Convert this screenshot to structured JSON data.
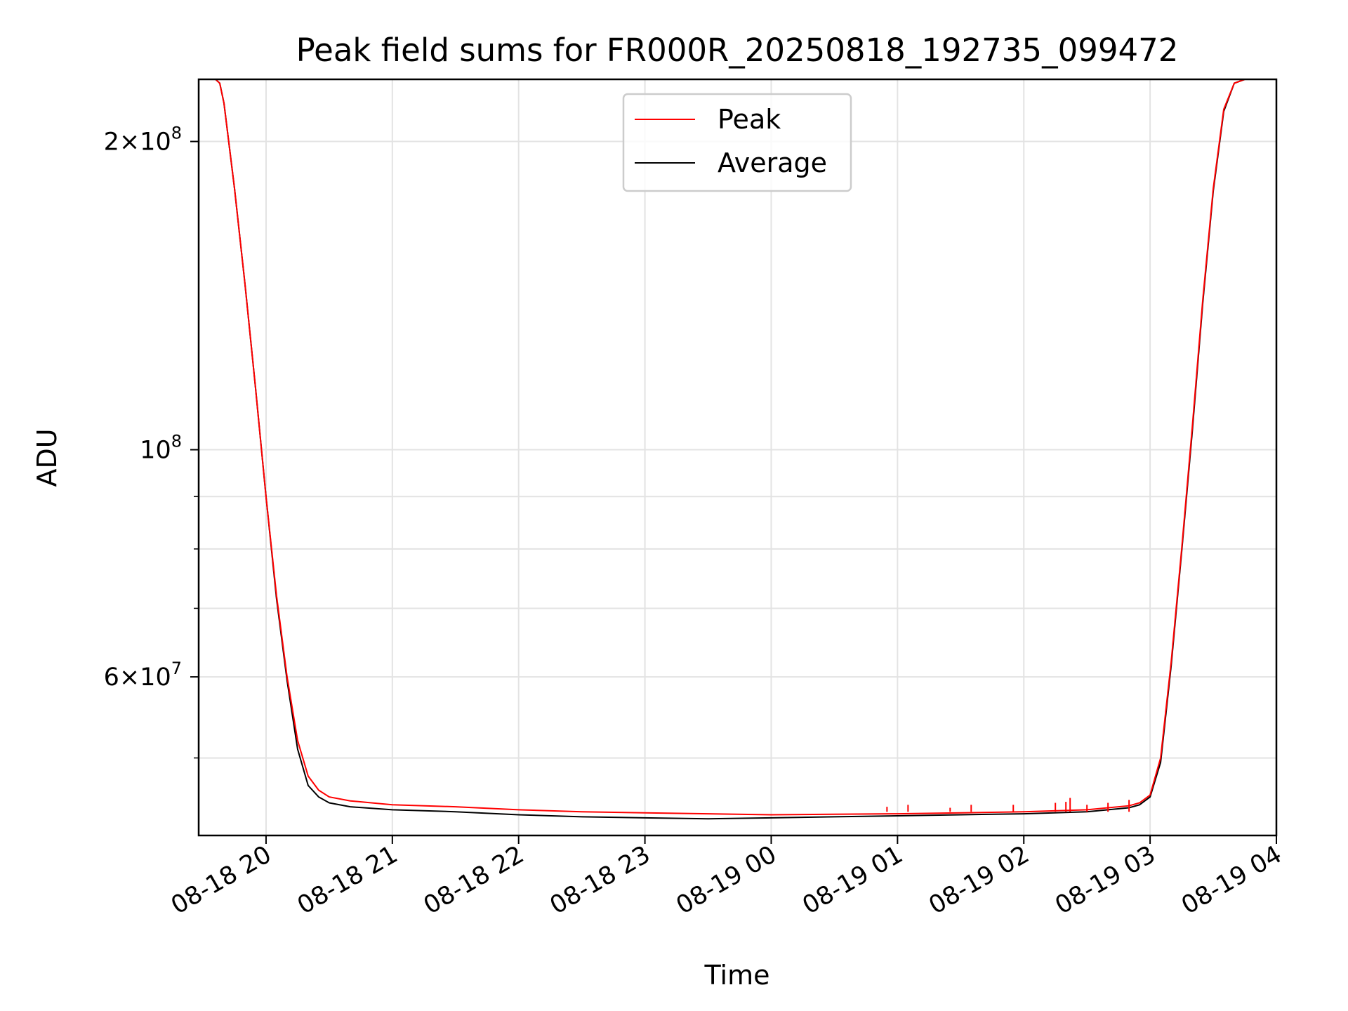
{
  "chart_data": {
    "type": "line",
    "title": "Peak field sums for FR000R_20250818_192735_099472",
    "xlabel": "Time",
    "ylabel": "ADU",
    "yscale": "log",
    "ylim": [
      42000000,
      230000000
    ],
    "xlim": [
      "2025-08-18 19:28",
      "2025-08-19 04:00"
    ],
    "grid": true,
    "legend_placement": "upper center",
    "x_ticks": [
      {
        "value": "2025-08-18 20:00",
        "label": "08-18 20"
      },
      {
        "value": "2025-08-18 21:00",
        "label": "08-18 21"
      },
      {
        "value": "2025-08-18 22:00",
        "label": "08-18 22"
      },
      {
        "value": "2025-08-18 23:00",
        "label": "08-18 23"
      },
      {
        "value": "2025-08-19 00:00",
        "label": "08-19 00"
      },
      {
        "value": "2025-08-19 01:00",
        "label": "08-19 01"
      },
      {
        "value": "2025-08-19 02:00",
        "label": "08-19 02"
      },
      {
        "value": "2025-08-19 03:00",
        "label": "08-19 03"
      },
      {
        "value": "2025-08-19 04:00",
        "label": "08-19 04"
      }
    ],
    "y_ticks": [
      {
        "value": 200000000,
        "mantissa": "2",
        "exponent": "8"
      },
      {
        "value": 100000000,
        "mantissa": "",
        "exponent": "8"
      },
      {
        "value": 60000000,
        "mantissa": "6",
        "exponent": "7"
      }
    ],
    "y_minor_ticks": [
      50000000,
      70000000,
      80000000,
      90000000
    ],
    "series": [
      {
        "name": "Peak",
        "color": "#ff0000",
        "x": [
          "2025-08-18 19:28",
          "2025-08-18 19:36",
          "2025-08-18 19:38",
          "2025-08-18 19:40",
          "2025-08-18 19:45",
          "2025-08-18 19:50",
          "2025-08-18 19:55",
          "2025-08-18 20:00",
          "2025-08-18 20:05",
          "2025-08-18 20:10",
          "2025-08-18 20:15",
          "2025-08-18 20:20",
          "2025-08-18 20:25",
          "2025-08-18 20:30",
          "2025-08-18 20:40",
          "2025-08-18 21:00",
          "2025-08-18 21:30",
          "2025-08-18 22:00",
          "2025-08-18 22:30",
          "2025-08-18 23:00",
          "2025-08-18 23:30",
          "2025-08-19 00:00",
          "2025-08-19 00:30",
          "2025-08-19 01:00",
          "2025-08-19 01:30",
          "2025-08-19 02:00",
          "2025-08-19 02:30",
          "2025-08-19 02:50",
          "2025-08-19 02:55",
          "2025-08-19 03:00",
          "2025-08-19 03:05",
          "2025-08-19 03:10",
          "2025-08-19 03:15",
          "2025-08-19 03:20",
          "2025-08-19 03:25",
          "2025-08-19 03:30",
          "2025-08-19 03:35",
          "2025-08-19 03:40",
          "2025-08-19 03:45",
          "2025-08-19 03:50",
          "2025-08-19 03:55"
        ],
        "y": [
          230000000,
          230000000,
          228000000,
          218000000,
          180000000,
          145000000,
          115000000,
          90000000,
          72000000,
          60000000,
          52000000,
          48000000,
          46500000,
          45800000,
          45400000,
          45000000,
          44800000,
          44500000,
          44300000,
          44200000,
          44100000,
          44000000,
          44050000,
          44100000,
          44200000,
          44300000,
          44500000,
          44900000,
          45200000,
          46000000,
          50000000,
          62000000,
          80000000,
          105000000,
          140000000,
          180000000,
          215000000,
          228000000,
          230000000,
          230000000,
          230000000
        ],
        "spikes": [
          {
            "x": "2025-08-19 00:55",
            "y": 44800000
          },
          {
            "x": "2025-08-19 01:05",
            "y": 45000000
          },
          {
            "x": "2025-08-19 01:25",
            "y": 44700000
          },
          {
            "x": "2025-08-19 01:35",
            "y": 45000000
          },
          {
            "x": "2025-08-19 01:55",
            "y": 45000000
          },
          {
            "x": "2025-08-19 02:15",
            "y": 45200000
          },
          {
            "x": "2025-08-19 02:20",
            "y": 45300000
          },
          {
            "x": "2025-08-19 02:22",
            "y": 45700000
          },
          {
            "x": "2025-08-19 02:30",
            "y": 45000000
          },
          {
            "x": "2025-08-19 02:40",
            "y": 45200000
          },
          {
            "x": "2025-08-19 02:50",
            "y": 45500000
          }
        ]
      },
      {
        "name": "Average",
        "color": "#000000",
        "x": [
          "2025-08-18 19:28",
          "2025-08-18 19:36",
          "2025-08-18 19:38",
          "2025-08-18 19:40",
          "2025-08-18 19:45",
          "2025-08-18 19:50",
          "2025-08-18 19:55",
          "2025-08-18 20:00",
          "2025-08-18 20:05",
          "2025-08-18 20:10",
          "2025-08-18 20:15",
          "2025-08-18 20:20",
          "2025-08-18 20:25",
          "2025-08-18 20:30",
          "2025-08-18 20:40",
          "2025-08-18 21:00",
          "2025-08-18 21:30",
          "2025-08-18 22:00",
          "2025-08-18 22:30",
          "2025-08-18 23:00",
          "2025-08-18 23:30",
          "2025-08-19 00:00",
          "2025-08-19 00:30",
          "2025-08-19 01:00",
          "2025-08-19 01:30",
          "2025-08-19 02:00",
          "2025-08-19 02:30",
          "2025-08-19 02:50",
          "2025-08-19 02:55",
          "2025-08-19 03:00",
          "2025-08-19 03:05",
          "2025-08-19 03:10",
          "2025-08-19 03:15",
          "2025-08-19 03:20",
          "2025-08-19 03:25",
          "2025-08-19 03:30",
          "2025-08-19 03:35",
          "2025-08-19 03:40",
          "2025-08-19 03:45",
          "2025-08-19 03:50",
          "2025-08-19 03:55"
        ],
        "y": [
          230000000,
          230000000,
          228000000,
          218000000,
          180000000,
          145000000,
          115000000,
          90000000,
          71500000,
          59500000,
          51000000,
          47000000,
          45800000,
          45200000,
          44800000,
          44500000,
          44300000,
          44000000,
          43800000,
          43700000,
          43600000,
          43700000,
          43800000,
          43900000,
          44000000,
          44100000,
          44300000,
          44700000,
          45000000,
          45800000,
          49500000,
          61500000,
          79500000,
          104000000,
          139000000,
          179000000,
          214000000,
          228000000,
          230000000,
          230000000,
          230000000
        ]
      }
    ]
  }
}
